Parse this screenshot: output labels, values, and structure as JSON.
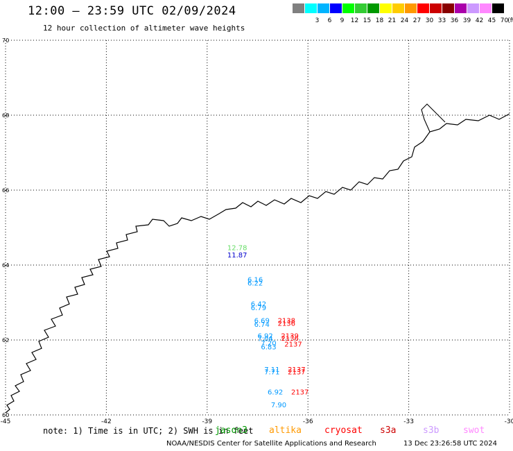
{
  "header": {
    "title": "12:00 — 23:59 UTC 02/09/2024",
    "subtitle": "12 hour collection of altimeter wave heights"
  },
  "legend": {
    "unit": "(ft)",
    "bins": [
      {
        "label": "",
        "color": "#808080"
      },
      {
        "label": "3",
        "color": "#00ffff"
      },
      {
        "label": "6",
        "color": "#00b4ff"
      },
      {
        "label": "9",
        "color": "#0000ff"
      },
      {
        "label": "12",
        "color": "#00ff00"
      },
      {
        "label": "15",
        "color": "#33cc33"
      },
      {
        "label": "18",
        "color": "#009900"
      },
      {
        "label": "21",
        "color": "#ffff00"
      },
      {
        "label": "24",
        "color": "#ffcc00"
      },
      {
        "label": "27",
        "color": "#ff9900"
      },
      {
        "label": "30",
        "color": "#ff0000"
      },
      {
        "label": "33",
        "color": "#cc0000"
      },
      {
        "label": "36",
        "color": "#880000"
      },
      {
        "label": "39",
        "color": "#aa00aa"
      },
      {
        "label": "42",
        "color": "#cc99ff"
      },
      {
        "label": "45",
        "color": "#ff88ff"
      },
      {
        "label": "70",
        "color": "#000000"
      }
    ]
  },
  "map": {
    "lon_range": [
      -45,
      -30
    ],
    "lat_range": [
      60,
      70
    ],
    "lon_ticks": [
      "-45",
      "-42",
      "-39",
      "-36",
      "-33",
      "-30"
    ],
    "lat_ticks": [
      "70",
      "68",
      "66",
      "64",
      "62",
      "60"
    ],
    "colors": {
      "jason3": "#0099ff",
      "s3a_red": "#ff0000",
      "high": "#66dd66",
      "blue": "#0000cc"
    },
    "observations": [
      {
        "value": "12.78",
        "lat": 64.4,
        "lon": -38.4,
        "color": "#66dd66"
      },
      {
        "value": "11.87",
        "lat": 64.2,
        "lon": -38.4,
        "color": "#0000cc"
      },
      {
        "value": "6.16",
        "lat": 63.55,
        "lon": -37.8,
        "color": "#0099ff"
      },
      {
        "value": "6.22",
        "lat": 63.45,
        "lon": -37.8,
        "color": "#0099ff"
      },
      {
        "value": "6.42",
        "lat": 62.9,
        "lon": -37.7,
        "color": "#0099ff"
      },
      {
        "value": "6.79",
        "lat": 62.8,
        "lon": -37.7,
        "color": "#0099ff"
      },
      {
        "value": "6.69",
        "lat": 62.45,
        "lon": -37.6,
        "color": "#0099ff"
      },
      {
        "value": "6.74",
        "lat": 62.35,
        "lon": -37.6,
        "color": "#0099ff"
      },
      {
        "value": "2138",
        "lat": 62.45,
        "lon": -36.9,
        "color": "#ff0000"
      },
      {
        "value": "2136",
        "lat": 62.38,
        "lon": -36.9,
        "color": "#ff0000"
      },
      {
        "value": "6.92",
        "lat": 62.05,
        "lon": -37.5,
        "color": "#0099ff"
      },
      {
        "value": "7.04",
        "lat": 61.97,
        "lon": -37.5,
        "color": "#0099ff"
      },
      {
        "value": "2139",
        "lat": 62.05,
        "lon": -36.8,
        "color": "#ff0000"
      },
      {
        "value": "2136",
        "lat": 61.98,
        "lon": -36.8,
        "color": "#ff0000"
      },
      {
        "value": "7.20",
        "lat": 61.85,
        "lon": -37.4,
        "color": "#0099ff"
      },
      {
        "value": "6.83",
        "lat": 61.75,
        "lon": -37.4,
        "color": "#0099ff"
      },
      {
        "value": "2137",
        "lat": 61.82,
        "lon": -36.7,
        "color": "#ff0000"
      },
      {
        "value": "7.11",
        "lat": 61.15,
        "lon": -37.3,
        "color": "#0099ff"
      },
      {
        "value": "7.71",
        "lat": 61.08,
        "lon": -37.3,
        "color": "#0099ff"
      },
      {
        "value": "2137",
        "lat": 61.15,
        "lon": -36.6,
        "color": "#ff0000"
      },
      {
        "value": "2137",
        "lat": 61.08,
        "lon": -36.6,
        "color": "#ff0000"
      },
      {
        "value": "6.92",
        "lat": 60.55,
        "lon": -37.2,
        "color": "#0099ff"
      },
      {
        "value": "2137",
        "lat": 60.55,
        "lon": -36.5,
        "color": "#ff0000"
      },
      {
        "value": "7.90",
        "lat": 60.2,
        "lon": -37.1,
        "color": "#0099ff"
      }
    ]
  },
  "footer": {
    "note": "note: 1) Time is in UTC; 2) SWH is in feet",
    "satellites": [
      {
        "name": "jason3",
        "color": "#009900"
      },
      {
        "name": "altika",
        "color": "#ff9900"
      },
      {
        "name": "cryosat",
        "color": "#ff0000"
      },
      {
        "name": "s3a",
        "color": "#cc0000"
      },
      {
        "name": "s3b",
        "color": "#cc99ff"
      },
      {
        "name": "swot",
        "color": "#ff88ff"
      }
    ],
    "credit": "NOAA/NESDIS Center for Satellite Applications and Research",
    "timestamp": "13 Dec 23:26:58 UTC 2024"
  }
}
